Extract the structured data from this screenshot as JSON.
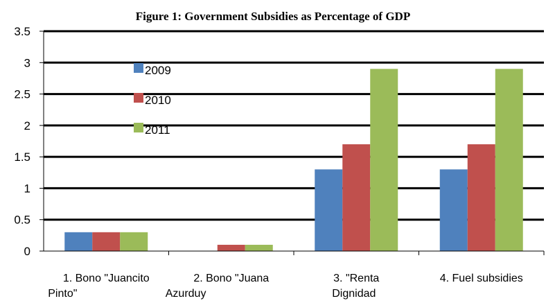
{
  "chart_data": {
    "type": "bar",
    "title": "Figure 1: Government Subsidies as Percentage of GDP",
    "xlabel": "",
    "ylabel": "",
    "ylim": [
      0,
      3.5
    ],
    "yticks": [
      "0",
      "0.5",
      "1",
      "1.5",
      "2",
      "2.5",
      "3",
      "3.5"
    ],
    "categories": [
      [
        "1. Bono \"Juancito",
        "Pinto\""
      ],
      [
        "2. Bono \"Juana",
        "Azurduy"
      ],
      [
        "3. \"Renta",
        "Dignidad"
      ],
      [
        "4. Fuel subsidies"
      ]
    ],
    "series": [
      {
        "name": "2009",
        "color": "#4f81bd",
        "values": [
          0.3,
          0,
          1.3,
          1.3
        ]
      },
      {
        "name": "2010",
        "color": "#c0504d",
        "values": [
          0.3,
          0.1,
          1.7,
          1.7
        ]
      },
      {
        "name": "2011",
        "color": "#9bbb59",
        "values": [
          0.3,
          0.1,
          2.9,
          2.9
        ]
      }
    ],
    "grid": true,
    "legend_position": "top-left inside plot"
  }
}
